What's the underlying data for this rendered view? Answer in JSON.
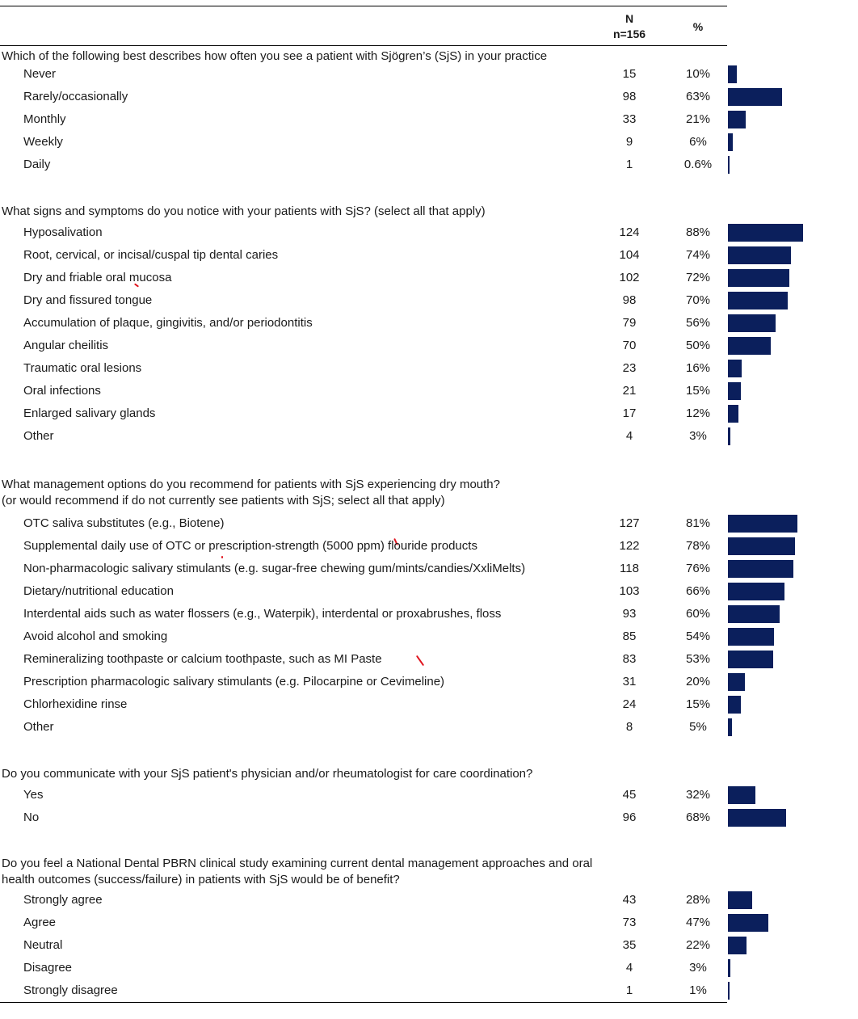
{
  "header": {
    "n_label": "N",
    "n_value": "n=156",
    "pct_label": "%"
  },
  "bar_color": "#0b1f5c",
  "sections": [
    {
      "question": [
        "Which of the following best describes how often you see a patient with Sjögren’s (SjS) in your practice"
      ],
      "rows": [
        {
          "label": "Never",
          "n": "15",
          "pct": "10%",
          "value": 10
        },
        {
          "label": "Rarely/occasionally",
          "n": "98",
          "pct": "63%",
          "value": 63
        },
        {
          "label": "Monthly",
          "n": "33",
          "pct": "21%",
          "value": 21
        },
        {
          "label": "Weekly",
          "n": "9",
          "pct": "6%",
          "value": 6
        },
        {
          "label": "Daily",
          "n": "1",
          "pct": "0.6%",
          "value": 0.6
        }
      ]
    },
    {
      "question": [
        "What signs and symptoms do you notice with your patients with SjS? (select all that apply)"
      ],
      "rows": [
        {
          "label": "Hyposalivation",
          "n": "124",
          "pct": "88%",
          "value": 88
        },
        {
          "label": "Root, cervical, or incisal/cuspal tip dental caries",
          "n": "104",
          "pct": "74%",
          "value": 74
        },
        {
          "label": "Dry and friable oral mucosa",
          "n": "102",
          "pct": "72%",
          "value": 72
        },
        {
          "label": "Dry and fissured tongue",
          "n": "98",
          "pct": "70%",
          "value": 70
        },
        {
          "label": "Accumulation of plaque, gingivitis, and/or periodontitis",
          "n": "79",
          "pct": "56%",
          "value": 56
        },
        {
          "label": "Angular cheilitis",
          "n": "70",
          "pct": "50%",
          "value": 50
        },
        {
          "label": "Traumatic oral lesions",
          "n": "23",
          "pct": "16%",
          "value": 16
        },
        {
          "label": "Oral infections",
          "n": "21",
          "pct": "15%",
          "value": 15
        },
        {
          "label": "Enlarged salivary glands",
          "n": "17",
          "pct": "12%",
          "value": 12
        },
        {
          "label": "Other",
          "n": "4",
          "pct": "3%",
          "value": 3
        }
      ]
    },
    {
      "question": [
        "What management options do you recommend for patients with SjS experiencing dry mouth?",
        "(or would recommend if do not currently see patients with SjS; select all that apply)"
      ],
      "rows": [
        {
          "label": "OTC saliva substitutes (e.g., Biotene)",
          "n": "127",
          "pct": "81%",
          "value": 81
        },
        {
          "label": "Supplemental daily use of OTC or prescription-strength (5000 ppm) flouride products",
          "n": "122",
          "pct": "78%",
          "value": 78
        },
        {
          "label": "Non-pharmacologic salivary stimulants (e.g. sugar-free chewing gum/mints/candies/XxliMelts)",
          "n": "118",
          "pct": "76%",
          "value": 76
        },
        {
          "label": "Dietary/nutritional education",
          "n": "103",
          "pct": "66%",
          "value": 66
        },
        {
          "label": "Interdental aids such as water flossers (e.g., Waterpik), interdental or proxabrushes, floss",
          "n": "93",
          "pct": "60%",
          "value": 60
        },
        {
          "label": "Avoid alcohol and smoking",
          "n": "85",
          "pct": "54%",
          "value": 54
        },
        {
          "label": "Remineralizing toothpaste or calcium toothpaste, such as MI Paste",
          "n": "83",
          "pct": "53%",
          "value": 53
        },
        {
          "label": "Prescription pharmacologic salivary stimulants (e.g. Pilocarpine or Cevimeline)",
          "n": "31",
          "pct": "20%",
          "value": 20
        },
        {
          "label": "Chlorhexidine rinse",
          "n": "24",
          "pct": "15%",
          "value": 15
        },
        {
          "label": "Other",
          "n": "8",
          "pct": "5%",
          "value": 5
        }
      ]
    },
    {
      "question": [
        "Do you communicate with your SjS patient's physician and/or rheumatologist for care coordination?"
      ],
      "rows": [
        {
          "label": "Yes",
          "n": "45",
          "pct": "32%",
          "value": 32
        },
        {
          "label": "No",
          "n": "96",
          "pct": "68%",
          "value": 68
        }
      ]
    },
    {
      "question": [
        "Do you feel a National Dental PBRN clinical study examining current dental  management approaches and oral",
        "health outcomes (success/failure) in patients with SjS would be of benefit?"
      ],
      "rows": [
        {
          "label": "Strongly agree",
          "n": "43",
          "pct": "28%",
          "value": 28
        },
        {
          "label": "Agree",
          "n": "73",
          "pct": "47%",
          "value": 47
        },
        {
          "label": "Neutral",
          "n": "35",
          "pct": "22%",
          "value": 22
        },
        {
          "label": "Disagree",
          "n": "4",
          "pct": "3%",
          "value": 3
        },
        {
          "label": "Strongly disagree",
          "n": "1",
          "pct": "1%",
          "value": 1
        }
      ]
    }
  ]
}
